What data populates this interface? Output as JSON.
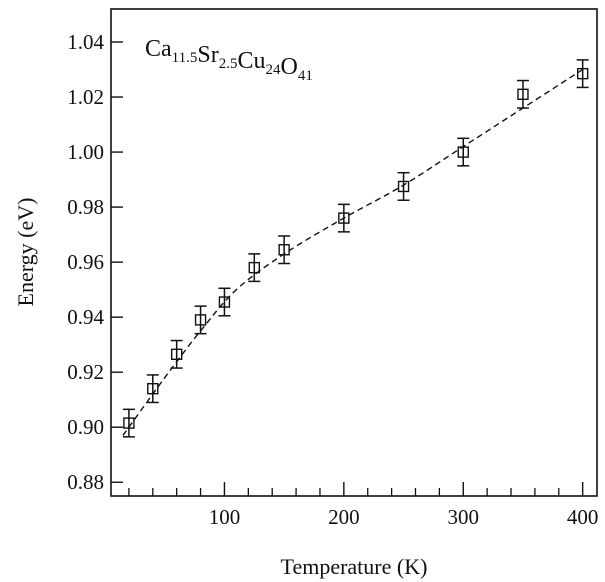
{
  "chart_data": {
    "type": "scatter",
    "xlabel": "Temperature (K)",
    "ylabel": "Energy (eV)",
    "xlim": [
      5,
      412
    ],
    "ylim": [
      0.875,
      1.052
    ],
    "x_ticks": [
      100,
      200,
      300,
      400
    ],
    "x_minor_step": 20,
    "y_ticks": [
      0.88,
      0.9,
      0.92,
      0.94,
      0.96,
      0.98,
      1.0,
      1.02,
      1.04
    ],
    "y_tick_labels": [
      "0.88",
      "0.90",
      "0.92",
      "0.94",
      "0.96",
      "0.98",
      "1.00",
      "1.02",
      "1.04"
    ],
    "grid": false,
    "annotation": {
      "parts": [
        {
          "text": "Ca",
          "sub": "11.5"
        },
        {
          "text": "Sr",
          "sub": "2.5"
        },
        {
          "text": "Cu",
          "sub": "24"
        },
        {
          "text": "O",
          "sub": "41"
        }
      ]
    },
    "marker": "open-square",
    "fit_line": "dashed",
    "points": [
      {
        "x": 20,
        "y": 0.9015,
        "err": 0.005
      },
      {
        "x": 40,
        "y": 0.914,
        "err": 0.005
      },
      {
        "x": 60,
        "y": 0.9265,
        "err": 0.005
      },
      {
        "x": 80,
        "y": 0.939,
        "err": 0.005
      },
      {
        "x": 100,
        "y": 0.9455,
        "err": 0.005
      },
      {
        "x": 125,
        "y": 0.958,
        "err": 0.005
      },
      {
        "x": 150,
        "y": 0.9645,
        "err": 0.005
      },
      {
        "x": 200,
        "y": 0.976,
        "err": 0.005
      },
      {
        "x": 250,
        "y": 0.9875,
        "err": 0.005
      },
      {
        "x": 300,
        "y": 1.0,
        "err": 0.005
      },
      {
        "x": 350,
        "y": 1.021,
        "err": 0.005
      },
      {
        "x": 400,
        "y": 1.0285,
        "err": 0.005
      }
    ],
    "fit_points": [
      {
        "x": 15,
        "y": 0.897
      },
      {
        "x": 50,
        "y": 0.918
      },
      {
        "x": 80,
        "y": 0.935
      },
      {
        "x": 110,
        "y": 0.95
      },
      {
        "x": 150,
        "y": 0.963
      },
      {
        "x": 200,
        "y": 0.976
      },
      {
        "x": 250,
        "y": 0.988
      },
      {
        "x": 300,
        "y": 1.002
      },
      {
        "x": 350,
        "y": 1.016
      },
      {
        "x": 400,
        "y": 1.03
      }
    ]
  }
}
